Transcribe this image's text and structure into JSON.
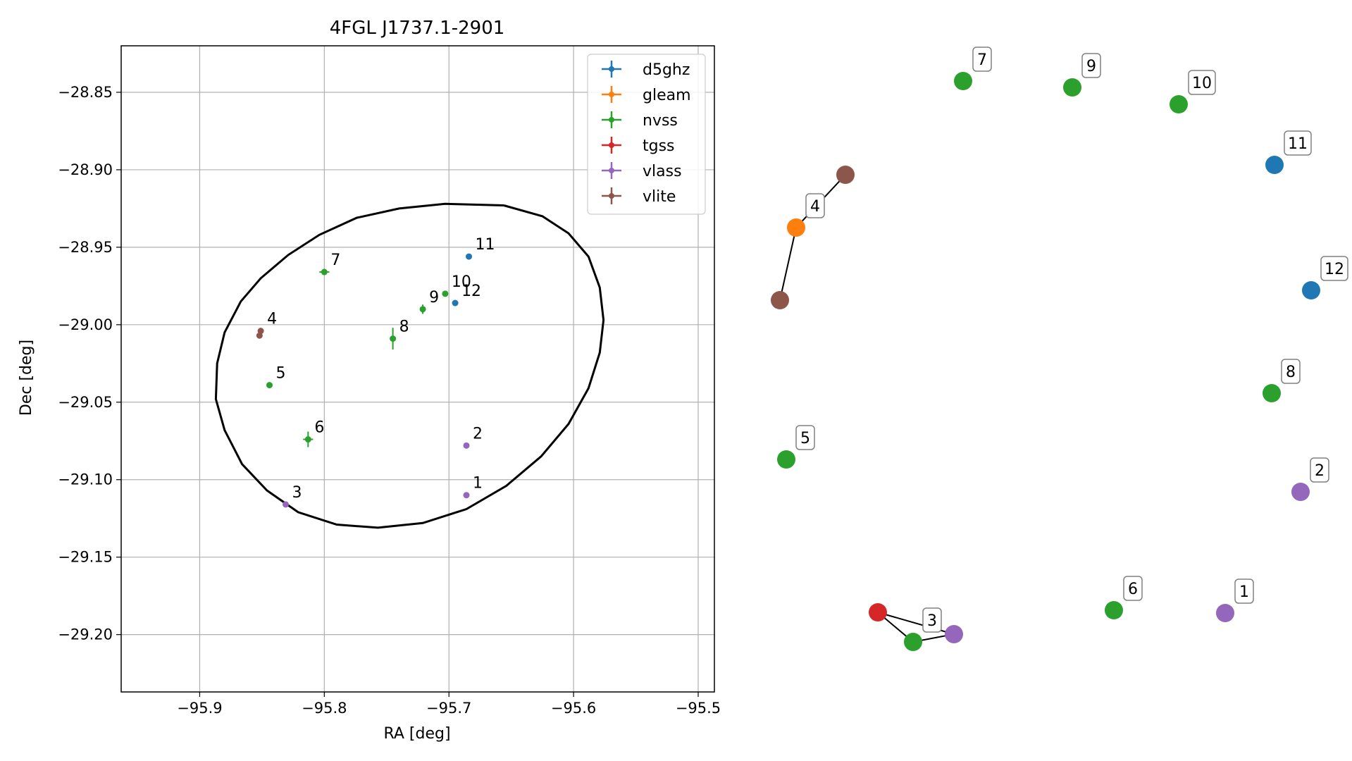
{
  "chart_data": [
    {
      "type": "scatter",
      "title": "4FGL J1737.1-2901",
      "xlabel": "RA [deg]",
      "ylabel": "Dec [deg]",
      "xlim": [
        -95.963,
        -95.487
      ],
      "ylim": [
        -29.237,
        -28.82
      ],
      "xticks": [
        -95.9,
        -95.8,
        -95.7,
        -95.6,
        -95.5
      ],
      "yticks": [
        -28.85,
        -28.9,
        -28.95,
        -29.0,
        -29.05,
        -29.1,
        -29.15,
        -29.2
      ],
      "xtick_labels": [
        "−95.9",
        "−95.8",
        "−95.7",
        "−95.6",
        "−95.5"
      ],
      "ytick_labels": [
        "−28.85",
        "−28.90",
        "−28.95",
        "−29.00",
        "−29.05",
        "−29.10",
        "−29.15",
        "−29.20"
      ],
      "grid": true,
      "legend_position": "top-right",
      "series": [
        {
          "name": "d5ghz",
          "color": "#1f77b4",
          "points": [
            {
              "label": "11",
              "ra": -95.684,
              "dec": -28.956,
              "ra_err": 0.0,
              "dec_err": 0.0
            },
            {
              "label": "12",
              "ra": -95.695,
              "dec": -28.986,
              "ra_err": 0.0,
              "dec_err": 0.0
            }
          ]
        },
        {
          "name": "gleam",
          "color": "#ff7f0e",
          "points": []
        },
        {
          "name": "nvss",
          "color": "#2ca02c",
          "points": [
            {
              "label": "7",
              "ra": -95.8,
              "dec": -28.966,
              "ra_err": 0.004,
              "dec_err": 0.002
            },
            {
              "label": "10",
              "ra": -95.703,
              "dec": -28.98,
              "ra_err": 0.0,
              "dec_err": 0.0
            },
            {
              "label": "9",
              "ra": -95.721,
              "dec": -28.99,
              "ra_err": 0.0,
              "dec_err": 0.003
            },
            {
              "label": "8",
              "ra": -95.745,
              "dec": -29.009,
              "ra_err": 0.0,
              "dec_err": 0.007
            },
            {
              "label": "5",
              "ra": -95.844,
              "dec": -29.039,
              "ra_err": 0.0,
              "dec_err": 0.0
            },
            {
              "label": "6",
              "ra": -95.813,
              "dec": -29.074,
              "ra_err": 0.004,
              "dec_err": 0.005
            }
          ]
        },
        {
          "name": "tgss",
          "color": "#d62728",
          "points": []
        },
        {
          "name": "vlass",
          "color": "#9467bd",
          "points": [
            {
              "label": "2",
              "ra": -95.686,
              "dec": -29.078,
              "ra_err": 0.0,
              "dec_err": 0.0
            },
            {
              "label": "1",
              "ra": -95.686,
              "dec": -29.11,
              "ra_err": 0.0,
              "dec_err": 0.0
            },
            {
              "label": "3",
              "ra": -95.831,
              "dec": -29.116,
              "ra_err": 0.0,
              "dec_err": 0.0
            }
          ]
        },
        {
          "name": "vlite",
          "color": "#8c564b",
          "points": [
            {
              "label": "4",
              "ra": -95.851,
              "dec": -29.004,
              "ra_err": 0.0,
              "dec_err": 0.0
            },
            {
              "label": "",
              "ra": -95.852,
              "dec": -29.007,
              "ra_err": 0.0,
              "dec_err": 0.0
            }
          ]
        }
      ],
      "ellipse_polygon": [
        [
          -95.656,
          -28.923
        ],
        [
          -95.625,
          -28.93
        ],
        [
          -95.604,
          -28.941
        ],
        [
          -95.588,
          -28.956
        ],
        [
          -95.579,
          -28.976
        ],
        [
          -95.576,
          -28.997
        ],
        [
          -95.579,
          -29.018
        ],
        [
          -95.588,
          -29.041
        ],
        [
          -95.604,
          -29.064
        ],
        [
          -95.626,
          -29.085
        ],
        [
          -95.654,
          -29.104
        ],
        [
          -95.686,
          -29.119
        ],
        [
          -95.721,
          -29.128
        ],
        [
          -95.757,
          -29.131
        ],
        [
          -95.79,
          -29.129
        ],
        [
          -95.821,
          -29.121
        ],
        [
          -95.846,
          -29.107
        ],
        [
          -95.866,
          -29.09
        ],
        [
          -95.88,
          -29.068
        ],
        [
          -95.887,
          -29.048
        ],
        [
          -95.886,
          -29.025
        ],
        [
          -95.88,
          -29.005
        ],
        [
          -95.867,
          -28.985
        ],
        [
          -95.851,
          -28.97
        ],
        [
          -95.829,
          -28.955
        ],
        [
          -95.804,
          -28.942
        ],
        [
          -95.774,
          -28.931
        ],
        [
          -95.74,
          -28.925
        ],
        [
          -95.703,
          -28.922
        ],
        [
          -95.656,
          -28.923
        ]
      ]
    },
    {
      "type": "network",
      "nodes": [
        {
          "id": "7",
          "label": "7",
          "color": "#2ca02c"
        },
        {
          "id": "9",
          "label": "9",
          "color": "#2ca02c"
        },
        {
          "id": "10",
          "label": "10",
          "color": "#2ca02c"
        },
        {
          "id": "11",
          "label": "11",
          "color": "#1f77b4"
        },
        {
          "id": "vlite_a",
          "label": "",
          "color": "#8c564b"
        },
        {
          "id": "4",
          "label": "4",
          "color": "#ff7f0e"
        },
        {
          "id": "vlite_b",
          "label": "",
          "color": "#8c564b"
        },
        {
          "id": "12",
          "label": "12",
          "color": "#1f77b4"
        },
        {
          "id": "8",
          "label": "8",
          "color": "#2ca02c"
        },
        {
          "id": "5",
          "label": "5",
          "color": "#2ca02c"
        },
        {
          "id": "2",
          "label": "2",
          "color": "#9467bd"
        },
        {
          "id": "tgss_a",
          "label": "",
          "color": "#d62728"
        },
        {
          "id": "3",
          "label": "3",
          "color": "#2ca02c"
        },
        {
          "id": "vlass_a",
          "label": "",
          "color": "#9467bd"
        },
        {
          "id": "6",
          "label": "6",
          "color": "#2ca02c"
        },
        {
          "id": "1",
          "label": "1",
          "color": "#9467bd"
        }
      ],
      "edges": [
        [
          "vlite_a",
          "4"
        ],
        [
          "4",
          "vlite_b"
        ],
        [
          "tgss_a",
          "3"
        ],
        [
          "tgss_a",
          "vlass_a"
        ],
        [
          "3",
          "vlass_a"
        ]
      ]
    }
  ]
}
